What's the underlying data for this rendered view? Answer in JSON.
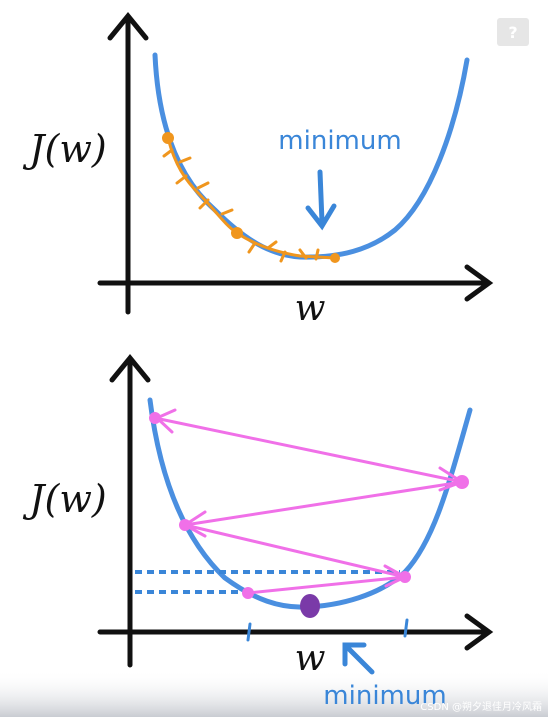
{
  "panels": [
    {
      "y_label": "J(w)",
      "x_label": "w",
      "annotation": "minimum"
    },
    {
      "y_label": "J(w)",
      "x_label": "w",
      "annotation": "minimum"
    }
  ],
  "help_icon": "?",
  "watermark": "CSDN @朔夕退佳月冷风霜"
}
